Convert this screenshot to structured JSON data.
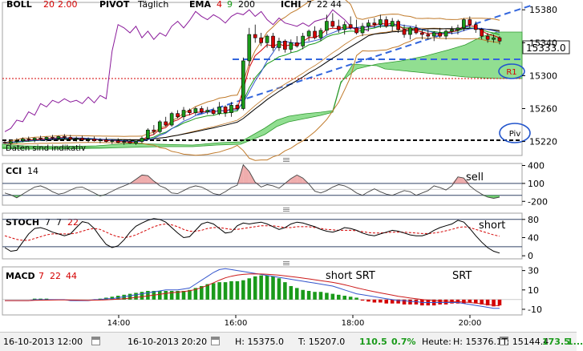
{
  "chart_data": [
    {
      "type": "candlestick",
      "title": "",
      "legend": [
        {
          "name": "BOLL",
          "params": [
            "20",
            "2.00"
          ]
        },
        {
          "name": "PIVOT",
          "params": [
            "Täglich"
          ]
        },
        {
          "name": "EMA",
          "params": [
            "4",
            "9",
            "200"
          ]
        },
        {
          "name": "ICHI",
          "params": [
            "7",
            "22",
            "44"
          ]
        }
      ],
      "ylim": [
        15205,
        15388
      ],
      "y_ticks": [
        15220,
        15260,
        15300,
        15340,
        15380
      ],
      "last_price": "15333.0",
      "pivot_labels": {
        "r1": "R1",
        "piv": "Piv",
        "r1_value": 15298,
        "piv_value": 15221
      },
      "note": "Daten sind indikativ",
      "candles": [
        [
          15219,
          15222,
          15217,
          15218
        ],
        [
          15218,
          15221,
          15215,
          15220
        ],
        [
          15220,
          15224,
          15218,
          15221
        ],
        [
          15221,
          15225,
          15219,
          15223
        ],
        [
          15223,
          15226,
          15220,
          15222
        ],
        [
          15222,
          15225,
          15219,
          15224
        ],
        [
          15224,
          15227,
          15221,
          15223
        ],
        [
          15223,
          15226,
          15220,
          15225
        ],
        [
          15225,
          15228,
          15222,
          15224
        ],
        [
          15224,
          15227,
          15221,
          15226
        ],
        [
          15226,
          15229,
          15223,
          15225
        ],
        [
          15225,
          15228,
          15222,
          15223
        ],
        [
          15223,
          15226,
          15220,
          15224
        ],
        [
          15224,
          15227,
          15221,
          15222
        ],
        [
          15222,
          15225,
          15219,
          15223
        ],
        [
          15223,
          15226,
          15220,
          15221
        ],
        [
          15221,
          15224,
          15218,
          15222
        ],
        [
          15222,
          15225,
          15219,
          15220
        ],
        [
          15220,
          15223,
          15217,
          15221
        ],
        [
          15221,
          15224,
          15218,
          15219
        ],
        [
          15219,
          15222,
          15216,
          15220
        ],
        [
          15220,
          15223,
          15217,
          15218
        ],
        [
          15218,
          15222,
          15216,
          15220
        ],
        [
          15220,
          15226,
          15218,
          15224
        ],
        [
          15224,
          15236,
          15222,
          15234
        ],
        [
          15234,
          15240,
          15228,
          15232
        ],
        [
          15232,
          15246,
          15230,
          15244
        ],
        [
          15244,
          15250,
          15238,
          15240
        ],
        [
          15240,
          15256,
          15238,
          15254
        ],
        [
          15254,
          15258,
          15248,
          15250
        ],
        [
          15250,
          15262,
          15246,
          15258
        ],
        [
          15258,
          15260,
          15252,
          15255
        ],
        [
          15255,
          15262,
          15252,
          15260
        ],
        [
          15260,
          15263,
          15254,
          15256
        ],
        [
          15256,
          15262,
          15253,
          15258
        ],
        [
          15258,
          15261,
          15252,
          15254
        ],
        [
          15254,
          15268,
          15252,
          15262
        ],
        [
          15262,
          15264,
          15250,
          15255
        ],
        [
          15255,
          15268,
          15250,
          15264
        ],
        [
          15264,
          15266,
          15258,
          15260
        ],
        [
          15260,
          15322,
          15258,
          15318
        ],
        [
          15318,
          15358,
          15312,
          15350
        ],
        [
          15350,
          15362,
          15340,
          15346
        ],
        [
          15346,
          15352,
          15336,
          15340
        ],
        [
          15340,
          15350,
          15334,
          15348
        ],
        [
          15348,
          15352,
          15330,
          15334
        ],
        [
          15334,
          15346,
          15330,
          15342
        ],
        [
          15342,
          15344,
          15328,
          15332
        ],
        [
          15332,
          15344,
          15328,
          15340
        ],
        [
          15340,
          15348,
          15334,
          15336
        ],
        [
          15336,
          15352,
          15332,
          15348
        ],
        [
          15348,
          15356,
          15342,
          15354
        ],
        [
          15354,
          15360,
          15344,
          15346
        ],
        [
          15346,
          15358,
          15342,
          15355
        ],
        [
          15355,
          15374,
          15350,
          15366
        ],
        [
          15366,
          15376,
          15358,
          15360
        ],
        [
          15360,
          15368,
          15352,
          15356
        ],
        [
          15356,
          15366,
          15350,
          15362
        ],
        [
          15362,
          15372,
          15356,
          15358
        ],
        [
          15358,
          15368,
          15350,
          15352
        ],
        [
          15352,
          15364,
          15348,
          15360
        ],
        [
          15360,
          15368,
          15354,
          15364
        ],
        [
          15364,
          15370,
          15358,
          15362
        ],
        [
          15362,
          15374,
          15358,
          15368
        ],
        [
          15368,
          15372,
          15358,
          15360
        ],
        [
          15360,
          15370,
          15354,
          15366
        ],
        [
          15366,
          15368,
          15352,
          15356
        ],
        [
          15356,
          15362,
          15346,
          15350
        ],
        [
          15350,
          15360,
          15344,
          15358
        ],
        [
          15358,
          15362,
          15350,
          15352
        ],
        [
          15352,
          15356,
          15344,
          15350
        ],
        [
          15350,
          15356,
          15344,
          15348
        ],
        [
          15348,
          15354,
          15342,
          15352
        ],
        [
          15352,
          15358,
          15346,
          15348
        ],
        [
          15348,
          15356,
          15344,
          15354
        ],
        [
          15354,
          15360,
          15350,
          15356
        ],
        [
          15356,
          15362,
          15350,
          15358
        ],
        [
          15358,
          15370,
          15354,
          15368
        ],
        [
          15368,
          15372,
          15358,
          15362
        ],
        [
          15362,
          15366,
          15352,
          15356
        ],
        [
          15356,
          15358,
          15344,
          15348
        ],
        [
          15348,
          15352,
          15340,
          15344
        ],
        [
          15344,
          15350,
          15340,
          15346
        ],
        [
          15346,
          15348,
          15338,
          15342
        ]
      ],
      "price_axis": {
        "label_color": "#000000"
      }
    },
    {
      "type": "line",
      "name": "CCI",
      "params": [
        "14"
      ],
      "annotation": "sell",
      "ylim": [
        -250,
        420
      ],
      "y_ticks": [
        400,
        100,
        -200
      ],
      "values": [
        -60,
        -90,
        -140,
        -80,
        -20,
        40,
        60,
        20,
        -40,
        -80,
        -60,
        -10,
        30,
        40,
        -10,
        -60,
        -110,
        -80,
        -30,
        20,
        60,
        100,
        170,
        240,
        230,
        140,
        60,
        20,
        -60,
        -70,
        -20,
        30,
        60,
        40,
        -10,
        -70,
        -90,
        -40,
        30,
        70,
        410,
        300,
        120,
        40,
        80,
        60,
        20,
        100,
        180,
        240,
        190,
        90,
        -30,
        -60,
        -20,
        40,
        80,
        60,
        10,
        -60,
        -100,
        -40,
        10,
        -40,
        -80,
        -100,
        -60,
        -20,
        -40,
        -100,
        -60,
        -20,
        60,
        30,
        -10,
        60,
        210,
        190,
        60,
        -20,
        -80,
        -130,
        -150,
        -130
      ]
    },
    {
      "type": "line",
      "name": "STOCH",
      "params": [
        "7",
        "7",
        "22"
      ],
      "annotation": "short",
      "ylim": [
        -5,
        92
      ],
      "y_ticks": [
        80,
        40,
        0
      ],
      "k": [
        18,
        10,
        12,
        30,
        48,
        60,
        62,
        58,
        52,
        48,
        44,
        48,
        62,
        75,
        72,
        60,
        42,
        25,
        18,
        22,
        35,
        52,
        65,
        72,
        78,
        82,
        80,
        74,
        62,
        50,
        40,
        42,
        56,
        70,
        74,
        70,
        60,
        50,
        52,
        66,
        72,
        70,
        72,
        74,
        70,
        64,
        58,
        62,
        70,
        74,
        72,
        68,
        64,
        58,
        54,
        52,
        56,
        62,
        60,
        56,
        50,
        46,
        44,
        48,
        52,
        56,
        54,
        50,
        46,
        44,
        44,
        48,
        56,
        62,
        66,
        70,
        78,
        74,
        60,
        44,
        30,
        18,
        10,
        6
      ],
      "d": [
        44,
        40,
        36,
        34,
        34,
        38,
        42,
        46,
        48,
        48,
        48,
        48,
        50,
        54,
        58,
        60,
        58,
        52,
        46,
        42,
        40,
        42,
        46,
        52,
        58,
        64,
        68,
        70,
        68,
        64,
        58,
        54,
        54,
        56,
        60,
        62,
        62,
        60,
        58,
        58,
        60,
        62,
        64,
        66,
        66,
        66,
        64,
        62,
        62,
        64,
        64,
        64,
        62,
        60,
        58,
        57,
        56,
        56,
        56,
        55,
        53,
        51,
        50,
        50,
        51,
        52,
        52,
        52,
        51,
        50,
        49,
        49,
        50,
        52,
        55,
        58,
        62,
        64,
        62,
        58,
        54,
        50,
        46,
        43
      ]
    },
    {
      "type": "bar",
      "name": "MACD",
      "params": [
        "7",
        "22",
        "44"
      ],
      "annotations": [
        "short SRT",
        "SRT"
      ],
      "ylim": [
        -15,
        33
      ],
      "y_ticks": [
        30,
        10,
        -10
      ],
      "histogram": [
        0,
        0,
        0,
        0,
        0,
        1,
        1,
        1,
        0,
        0,
        0,
        0,
        0,
        0,
        0,
        0,
        1,
        2,
        3,
        4,
        5,
        6,
        7,
        8,
        9,
        9,
        9,
        9,
        9,
        9,
        9,
        10,
        12,
        14,
        16,
        17,
        18,
        18,
        19,
        19,
        20,
        22,
        24,
        25,
        25,
        24,
        22,
        18,
        14,
        12,
        10,
        9,
        8,
        8,
        7,
        6,
        5,
        4,
        3,
        2,
        -1,
        -2,
        -3,
        -3,
        -4,
        -4,
        -4,
        -5,
        -5,
        -5,
        -6,
        -6,
        -6,
        -5,
        -5,
        -4,
        -4,
        -4,
        -3,
        -4,
        -5,
        -6,
        -7,
        -6
      ],
      "signal": [
        -1,
        -1,
        -1,
        -1,
        -1,
        0,
        0,
        0,
        0,
        0,
        0,
        -1,
        -1,
        -1,
        -1,
        0,
        0,
        1,
        1,
        2,
        3,
        4,
        5,
        6,
        7,
        8,
        9,
        10,
        10,
        10,
        11,
        12,
        16,
        20,
        24,
        28,
        31,
        32,
        31,
        30,
        29,
        28,
        27,
        26,
        25,
        24,
        23,
        22,
        21,
        20,
        19,
        18,
        17,
        16,
        15,
        14,
        12,
        10,
        8,
        6,
        5,
        4,
        3,
        2,
        1,
        0,
        -1,
        -1,
        -2,
        -2,
        -3,
        -3,
        -3,
        -3,
        -3,
        -3,
        -3,
        -4,
        -5,
        -6,
        -7,
        -8,
        -9,
        -9
      ]
    }
  ],
  "x_axis": {
    "labels": [
      "14:00",
      "16:00",
      "18:00",
      "20:00"
    ]
  },
  "footer": {
    "start_date": "16-10-2013 12:00",
    "end_date": "16-10-2013 20:20",
    "h_label": "H: 15375.0",
    "t_label": "T: 15207.0",
    "range": "110.5",
    "pct": "0.7%",
    "heute_label": "Heute:",
    "heute_h": "H: 15376.1",
    "heute_t": "T: 15144.4",
    "heute_range": "173.5",
    "heute_pct": "1...",
    "colors": {
      "up": "#1a9a1a",
      "down": "#d40000"
    }
  }
}
